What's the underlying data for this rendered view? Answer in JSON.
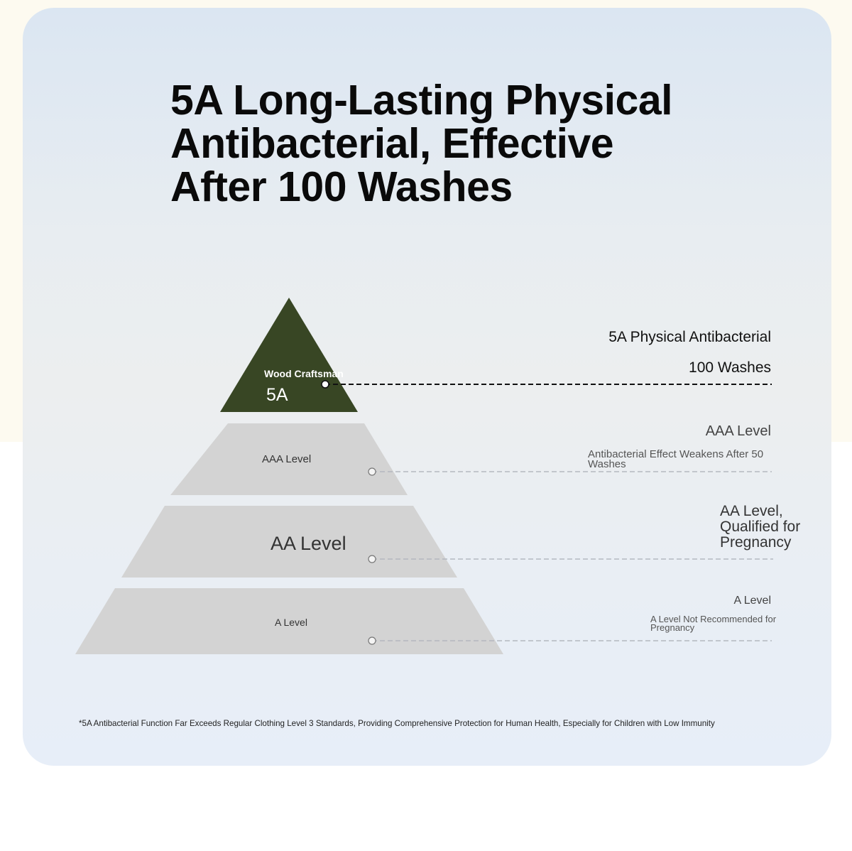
{
  "title": "5A Long-Lasting Physical Antibacterial, Effective After 100 Washes",
  "colors": {
    "accent_green": "#384624",
    "tier_gray": "#d3d3d3",
    "line_dark": "#111111",
    "line_light": "#b4b8c0"
  },
  "pyramid": {
    "top": {
      "brand": "Wood Craftsman",
      "grade": "5A",
      "callout_title": "5A Physical Antibacterial",
      "callout_detail": "100 Washes"
    },
    "aaa": {
      "label": "AAA Level",
      "callout_title": "AAA Level",
      "callout_detail": "Antibacterial Effect Weakens After 50 Washes"
    },
    "aa": {
      "label": "AA Level",
      "callout_title": "AA Level, Qualified for Pregnancy"
    },
    "a": {
      "label": "A Level",
      "callout_title": "A Level",
      "callout_detail": "A Level Not Recommended for Pregnancy"
    }
  },
  "footnote": "*5A Antibacterial Function Far Exceeds Regular Clothing Level 3 Standards, Providing Comprehensive Protection for Human Health, Especially for Children with Low Immunity"
}
